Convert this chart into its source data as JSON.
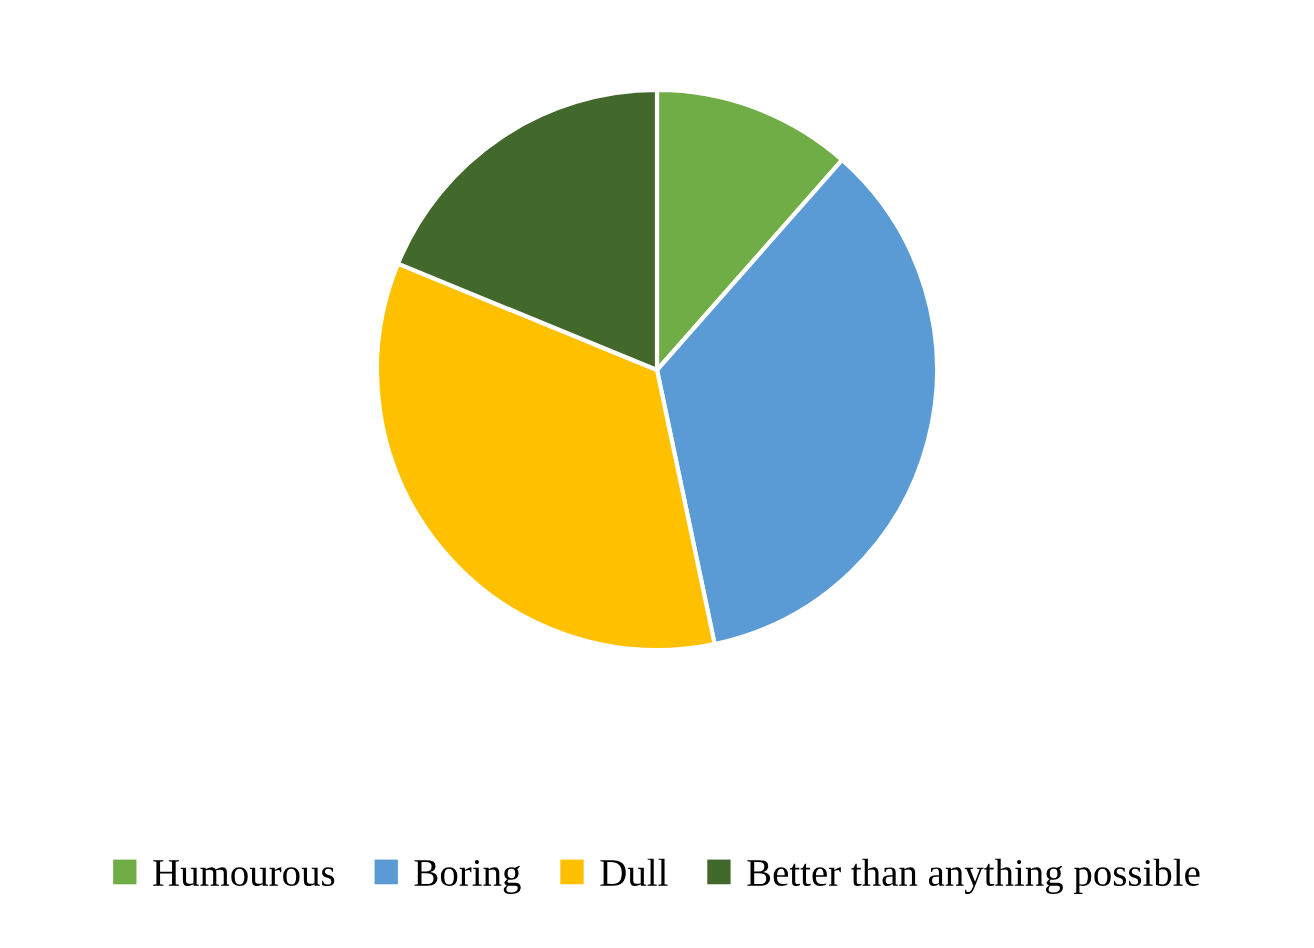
{
  "chart_data": {
    "type": "pie",
    "categories": [
      "Humourous",
      "Boring",
      "Dull",
      "Better than anything possible"
    ],
    "values": [
      11.5,
      35.2,
      34.5,
      18.8
    ],
    "colors": [
      "#70ad47",
      "#5b9bd5",
      "#ffc000",
      "#43682b"
    ],
    "legend": "bottom"
  }
}
